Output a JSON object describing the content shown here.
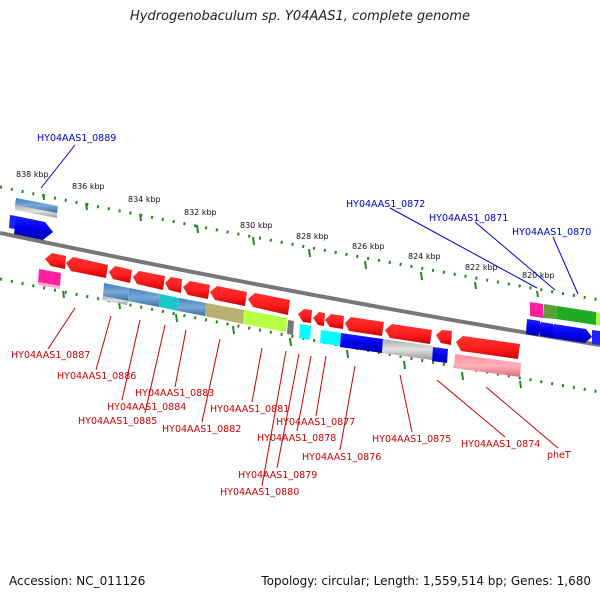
{
  "title": "Hydrogenobaculum sp. Y04AAS1, complete genome",
  "footer": {
    "accession": "Accession: NC_011126",
    "summary": "Topology: circular; Length: 1,559,514 bp; Genes: 1,680"
  },
  "scale_labels": [
    "838 kbp",
    "836 kbp",
    "834 kbp",
    "832 kbp",
    "830 kbp",
    "828 kbp",
    "826 kbp",
    "824 kbp",
    "822 kbp",
    "820 kbp"
  ],
  "gene_labels_top": [
    "HY04AAS1_0889",
    "HY04AAS1_0872",
    "HY04AAS1_0871",
    "HY04AAS1_0870"
  ],
  "gene_labels_bottom": [
    "HY04AAS1_0887",
    "HY04AAS1_0886",
    "HY04AAS1_0884",
    "HY04AAS1_0883",
    "HY04AAS1_0885",
    "HY04AAS1_0882",
    "HY04AAS1_0881",
    "HY04AAS1_0877",
    "HY04AAS1_0878",
    "HY04AAS1_0876",
    "HY04AAS1_0879",
    "HY04AAS1_0880",
    "HY04AAS1_0875",
    "HY04AAS1_0874",
    "pheT"
  ],
  "colors": {
    "forward_strand": "#0000ee",
    "reverse_strand": "#ff0000",
    "backbone": "#777777",
    "dots": "#228822"
  }
}
